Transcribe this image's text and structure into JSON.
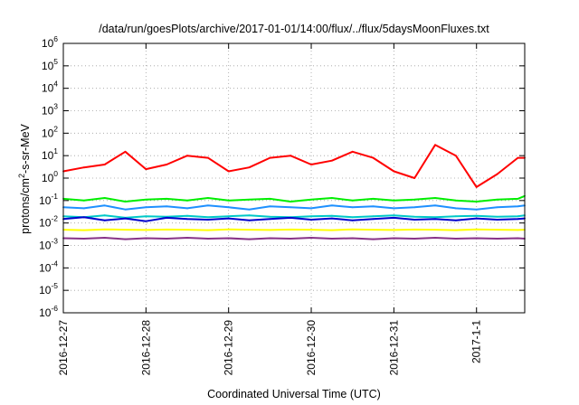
{
  "chart_data": {
    "type": "line",
    "title": "/data/run/goesPlots/archive/2017-01-01/14:00/flux/../flux/5daysMoonFluxes.txt",
    "xlabel": "Coordinated Universal Time (UTC)",
    "ylabel": "protons/cm²-s-sr-MeV",
    "ylabel_parts": {
      "pre": "protons/cm",
      "sup": "2",
      "post": "-s-sr-MeV"
    },
    "y_scale": "log",
    "ylim": [
      1e-06,
      1000000.0
    ],
    "xlim": [
      "2016-12-27 00:00",
      "2017-01-01 14:00"
    ],
    "x_ticks": [
      "2016-12-27",
      "2016-12-28",
      "2016-12-29",
      "2016-12-30",
      "2016-12-31",
      "2017-1-1"
    ],
    "y_ticks": [
      {
        "base": "10",
        "exp": "-6"
      },
      {
        "base": "10",
        "exp": "-5"
      },
      {
        "base": "10",
        "exp": "-4"
      },
      {
        "base": "10",
        "exp": "-3"
      },
      {
        "base": "10",
        "exp": "-2"
      },
      {
        "base": "10",
        "exp": "-1"
      },
      {
        "base": "10",
        "exp": "0"
      },
      {
        "base": "10",
        "exp": "1"
      },
      {
        "base": "10",
        "exp": "2"
      },
      {
        "base": "10",
        "exp": "3"
      },
      {
        "base": "10",
        "exp": "4"
      },
      {
        "base": "10",
        "exp": "5"
      },
      {
        "base": "10",
        "exp": "6"
      }
    ],
    "grid": true,
    "legend": "none",
    "x": [
      "2016-12-27 00:00",
      "2016-12-27 06:00",
      "2016-12-27 12:00",
      "2016-12-27 18:00",
      "2016-12-28 00:00",
      "2016-12-28 06:00",
      "2016-12-28 12:00",
      "2016-12-28 18:00",
      "2016-12-29 00:00",
      "2016-12-29 06:00",
      "2016-12-29 12:00",
      "2016-12-29 18:00",
      "2016-12-30 00:00",
      "2016-12-30 06:00",
      "2016-12-30 12:00",
      "2016-12-30 18:00",
      "2016-12-31 00:00",
      "2016-12-31 06:00",
      "2016-12-31 12:00",
      "2016-12-31 18:00",
      "2017-01-01 00:00",
      "2017-01-01 06:00",
      "2017-01-01 12:00",
      "2017-01-01 14:00"
    ],
    "series": [
      {
        "color": "#ff0000",
        "values": [
          2,
          3,
          4,
          15,
          2.5,
          4,
          10,
          8,
          2,
          3,
          8,
          10,
          4,
          6,
          15,
          8,
          2,
          1,
          30,
          10,
          0.4,
          1.5,
          8,
          8
        ]
      },
      {
        "color": "#00ee00",
        "values": [
          0.12,
          0.1,
          0.13,
          0.09,
          0.11,
          0.12,
          0.1,
          0.13,
          0.1,
          0.11,
          0.12,
          0.09,
          0.11,
          0.13,
          0.1,
          0.12,
          0.1,
          0.11,
          0.13,
          0.1,
          0.09,
          0.11,
          0.12,
          0.16
        ]
      },
      {
        "color": "#1e90ff",
        "values": [
          0.05,
          0.045,
          0.06,
          0.04,
          0.05,
          0.055,
          0.045,
          0.06,
          0.05,
          0.04,
          0.055,
          0.05,
          0.045,
          0.06,
          0.05,
          0.055,
          0.045,
          0.05,
          0.06,
          0.045,
          0.04,
          0.05,
          0.055,
          0.06
        ]
      },
      {
        "color": "#00c8c8",
        "values": [
          0.02,
          0.018,
          0.022,
          0.017,
          0.02,
          0.019,
          0.021,
          0.018,
          0.02,
          0.022,
          0.019,
          0.018,
          0.02,
          0.021,
          0.018,
          0.02,
          0.022,
          0.019,
          0.018,
          0.02,
          0.021,
          0.019,
          0.02,
          0.022
        ]
      },
      {
        "color": "#0000cc",
        "values": [
          0.015,
          0.018,
          0.013,
          0.016,
          0.012,
          0.017,
          0.015,
          0.014,
          0.016,
          0.013,
          0.015,
          0.017,
          0.014,
          0.016,
          0.013,
          0.015,
          0.017,
          0.014,
          0.015,
          0.013,
          0.016,
          0.014,
          0.015,
          0.016
        ]
      },
      {
        "color": "#ffff00",
        "values": [
          0.005,
          0.0048,
          0.0052,
          0.005,
          0.0049,
          0.0051,
          0.005,
          0.0048,
          0.0052,
          0.005,
          0.0049,
          0.0051,
          0.005,
          0.0048,
          0.0052,
          0.005,
          0.0049,
          0.0051,
          0.005,
          0.0048,
          0.0052,
          0.005,
          0.0049,
          0.005
        ]
      },
      {
        "color": "#883388",
        "values": [
          0.0021,
          0.002,
          0.0022,
          0.0019,
          0.0021,
          0.002,
          0.0022,
          0.002,
          0.0021,
          0.0019,
          0.0021,
          0.002,
          0.0022,
          0.002,
          0.0021,
          0.0019,
          0.0021,
          0.002,
          0.0022,
          0.002,
          0.0021,
          0.002,
          0.0021,
          0.002
        ]
      }
    ]
  }
}
